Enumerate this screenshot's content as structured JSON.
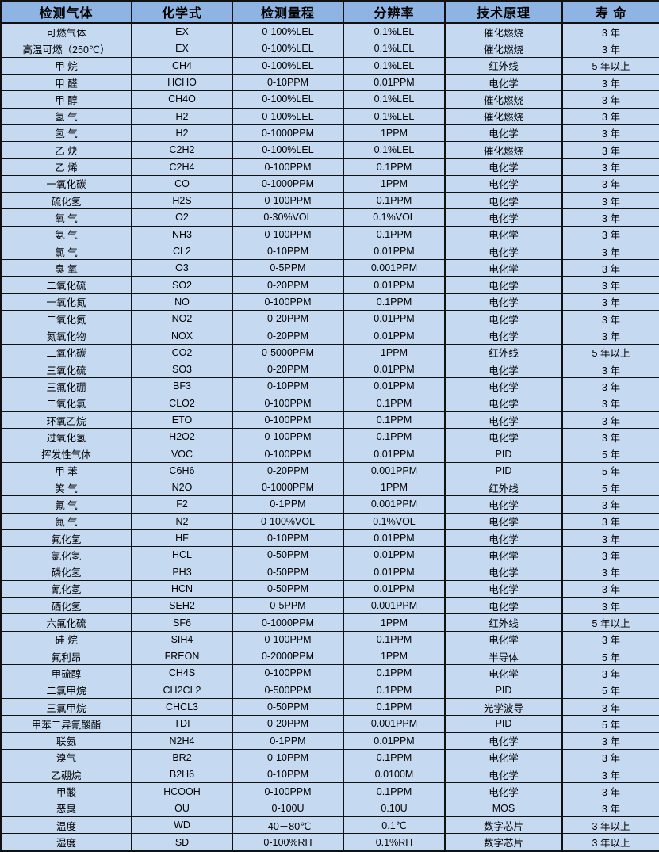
{
  "colors": {
    "header_bg": "#8DB4E2",
    "row_bg": "#C5D9F1",
    "border": "#111111",
    "text": "#000000"
  },
  "table": {
    "columns": [
      "检测气体",
      "化学式",
      "检测量程",
      "分辨率",
      "技术原理",
      "寿 命"
    ],
    "column_keys": [
      "gas",
      "formula",
      "range",
      "resolution",
      "principle",
      "lifespan"
    ],
    "rows": [
      [
        "可燃气体",
        "EX",
        "0-100%LEL",
        "0.1%LEL",
        "催化燃烧",
        "3 年"
      ],
      [
        "高温可燃（250℃）",
        "EX",
        "0-100%LEL",
        "0.1%LEL",
        "催化燃烧",
        "3 年"
      ],
      [
        "甲 烷",
        "CH4",
        "0-100%LEL",
        "0.1%LEL",
        "红外线",
        "5 年以上"
      ],
      [
        "甲 醛",
        "HCHO",
        "0-10PPM",
        "0.01PPM",
        "电化学",
        "3 年"
      ],
      [
        "甲 醇",
        "CH4O",
        "0-100%LEL",
        "0.1%LEL",
        "催化燃烧",
        "3 年"
      ],
      [
        "氢 气",
        "H2",
        "0-100%LEL",
        "0.1%LEL",
        "催化燃烧",
        "3 年"
      ],
      [
        "氢 气",
        "H2",
        "0-1000PPM",
        "1PPM",
        "电化学",
        "3 年"
      ],
      [
        "乙 炔",
        "C2H2",
        "0-100%LEL",
        "0.1%LEL",
        "催化燃烧",
        "3 年"
      ],
      [
        "乙 烯",
        "C2H4",
        "0-100PPM",
        "0.1PPM",
        "电化学",
        "3 年"
      ],
      [
        "一氧化碳",
        "CO",
        "0-1000PPM",
        "1PPM",
        "电化学",
        "3 年"
      ],
      [
        "硫化氢",
        "H2S",
        "0-100PPM",
        "0.1PPM",
        "电化学",
        "3 年"
      ],
      [
        "氧 气",
        "O2",
        "0-30%VOL",
        "0.1%VOL",
        "电化学",
        "3 年"
      ],
      [
        "氨 气",
        "NH3",
        "0-100PPM",
        "0.1PPM",
        "电化学",
        "3 年"
      ],
      [
        "氯 气",
        "CL2",
        "0-10PPM",
        "0.01PPM",
        "电化学",
        "3 年"
      ],
      [
        "臭 氧",
        "O3",
        "0-5PPM",
        "0.001PPM",
        "电化学",
        "3 年"
      ],
      [
        "二氧化硫",
        "SO2",
        "0-20PPM",
        "0.01PPM",
        "电化学",
        "3 年"
      ],
      [
        "一氧化氮",
        "NO",
        "0-100PPM",
        "0.1PPM",
        "电化学",
        "3 年"
      ],
      [
        "二氧化氮",
        "NO2",
        "0-20PPM",
        "0.01PPM",
        "电化学",
        "3 年"
      ],
      [
        "氮氧化物",
        "NOX",
        "0-20PPM",
        "0.01PPM",
        "电化学",
        "3 年"
      ],
      [
        "二氧化碳",
        "CO2",
        "0-5000PPM",
        "1PPM",
        "红外线",
        "5 年以上"
      ],
      [
        "三氧化硫",
        "SO3",
        "0-20PPM",
        "0.01PPM",
        "电化学",
        "3 年"
      ],
      [
        "三氟化硼",
        "BF3",
        "0-10PPM",
        "0.01PPM",
        "电化学",
        "3 年"
      ],
      [
        "二氧化氯",
        "CLO2",
        "0-100PPM",
        "0.1PPM",
        "电化学",
        "3 年"
      ],
      [
        "环氧乙烷",
        "ETO",
        "0-100PPM",
        "0.1PPM",
        "电化学",
        "3 年"
      ],
      [
        "过氧化氢",
        "H2O2",
        "0-100PPM",
        "0.1PPM",
        "电化学",
        "3 年"
      ],
      [
        "挥发性气体",
        "VOC",
        "0-100PPM",
        "0.01PPM",
        "PID",
        "5 年"
      ],
      [
        "甲 苯",
        "C6H6",
        "0-20PPM",
        "0.001PPM",
        "PID",
        "5 年"
      ],
      [
        "笑 气",
        "N2O",
        "0-1000PPM",
        "1PPM",
        "红外线",
        "5 年"
      ],
      [
        "氟 气",
        "F2",
        "0-1PPM",
        "0.001PPM",
        "电化学",
        "3 年"
      ],
      [
        "氮 气",
        "N2",
        "0-100%VOL",
        "0.1%VOL",
        "电化学",
        "3 年"
      ],
      [
        "氟化氢",
        "HF",
        "0-10PPM",
        "0.01PPM",
        "电化学",
        "3 年"
      ],
      [
        "氯化氢",
        "HCL",
        "0-50PPM",
        "0.01PPM",
        "电化学",
        "3 年"
      ],
      [
        "磷化氢",
        "PH3",
        "0-50PPM",
        "0.01PPM",
        "电化学",
        "3 年"
      ],
      [
        "氰化氢",
        "HCN",
        "0-50PPM",
        "0.01PPM",
        "电化学",
        "3 年"
      ],
      [
        "硒化氢",
        "SEH2",
        "0-5PPM",
        "0.001PPM",
        "电化学",
        "3 年"
      ],
      [
        "六氟化硫",
        "SF6",
        "0-1000PPM",
        "1PPM",
        "红外线",
        "5 年以上"
      ],
      [
        "硅 烷",
        "SIH4",
        "0-100PPM",
        "0.1PPM",
        "电化学",
        "3 年"
      ],
      [
        "氟利昂",
        "FREON",
        "0-2000PPM",
        "1PPM",
        "半导体",
        "5 年"
      ],
      [
        "甲硫醇",
        "CH4S",
        "0-100PPM",
        "0.1PPM",
        "电化学",
        "3 年"
      ],
      [
        "二氯甲烷",
        "CH2CL2",
        "0-500PPM",
        "0.1PPM",
        "PID",
        "5 年"
      ],
      [
        "三氯甲烷",
        "CHCL3",
        "0-50PPM",
        "0.1PPM",
        "光学波导",
        "3 年"
      ],
      [
        "甲苯二异氰酸酯",
        "TDI",
        "0-20PPM",
        "0.001PPM",
        "PID",
        "5 年"
      ],
      [
        "联氨",
        "N2H4",
        "0-1PPM",
        "0.01PPM",
        "电化学",
        "3 年"
      ],
      [
        "溴气",
        "BR2",
        "0-10PPM",
        "0.1PPM",
        "电化学",
        "3 年"
      ],
      [
        "乙硼烷",
        "B2H6",
        "0-10PPM",
        "0.0100M",
        "电化学",
        "3 年"
      ],
      [
        "甲酸",
        "HCOOH",
        "0-100PPM",
        "0.1PPM",
        "电化学",
        "3 年"
      ],
      [
        "恶臭",
        "OU",
        "0-100U",
        "0.10U",
        "MOS",
        "3 年"
      ],
      [
        "温度",
        "WD",
        "-40－80℃",
        "0.1℃",
        "数字芯片",
        "3 年以上"
      ],
      [
        "湿度",
        "SD",
        "0-100%RH",
        "0.1%RH",
        "数字芯片",
        "3 年以上"
      ]
    ]
  }
}
